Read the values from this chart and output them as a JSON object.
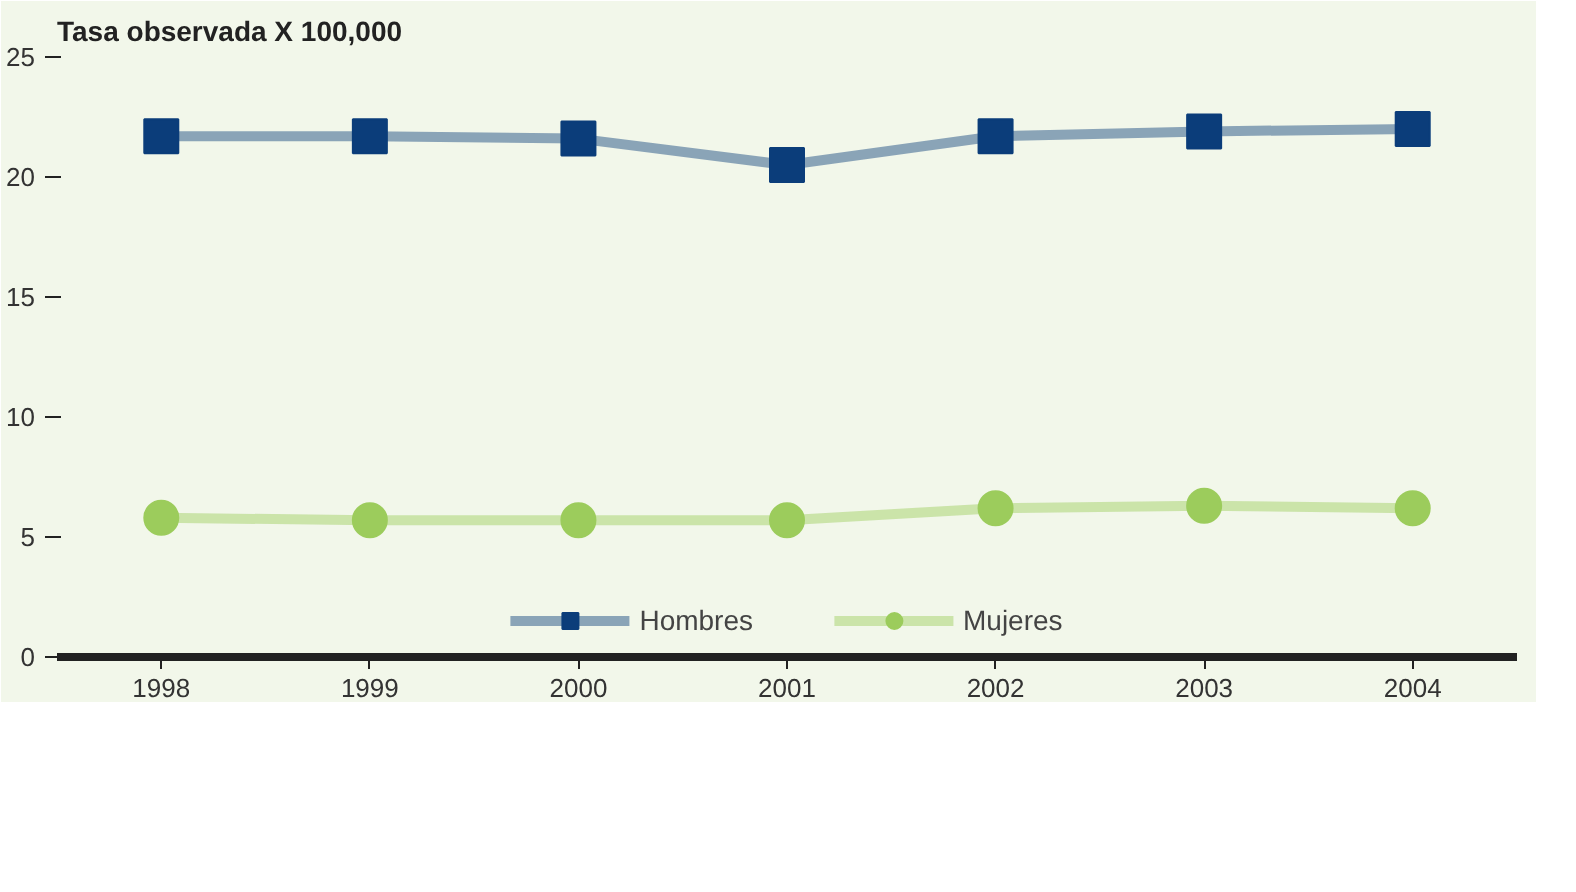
{
  "chart_data": {
    "type": "line",
    "ylabel": "Tasa observada X 100,000",
    "categories": [
      "1998",
      "1999",
      "2000",
      "2001",
      "2002",
      "2003",
      "2004"
    ],
    "series": [
      {
        "name": "Hombres",
        "color": "#0b3d7a",
        "marker": "square",
        "values": [
          21.7,
          21.7,
          21.6,
          20.5,
          21.7,
          21.9,
          22.0
        ]
      },
      {
        "name": "Mujeres",
        "color": "#9ccc5c",
        "marker": "circle",
        "values": [
          5.8,
          5.7,
          5.7,
          5.7,
          6.2,
          6.3,
          6.2
        ]
      }
    ],
    "ylim": [
      0,
      25
    ],
    "yticks": [
      0,
      5,
      10,
      15,
      20,
      25
    ],
    "grid": false,
    "legend": "bottom"
  }
}
